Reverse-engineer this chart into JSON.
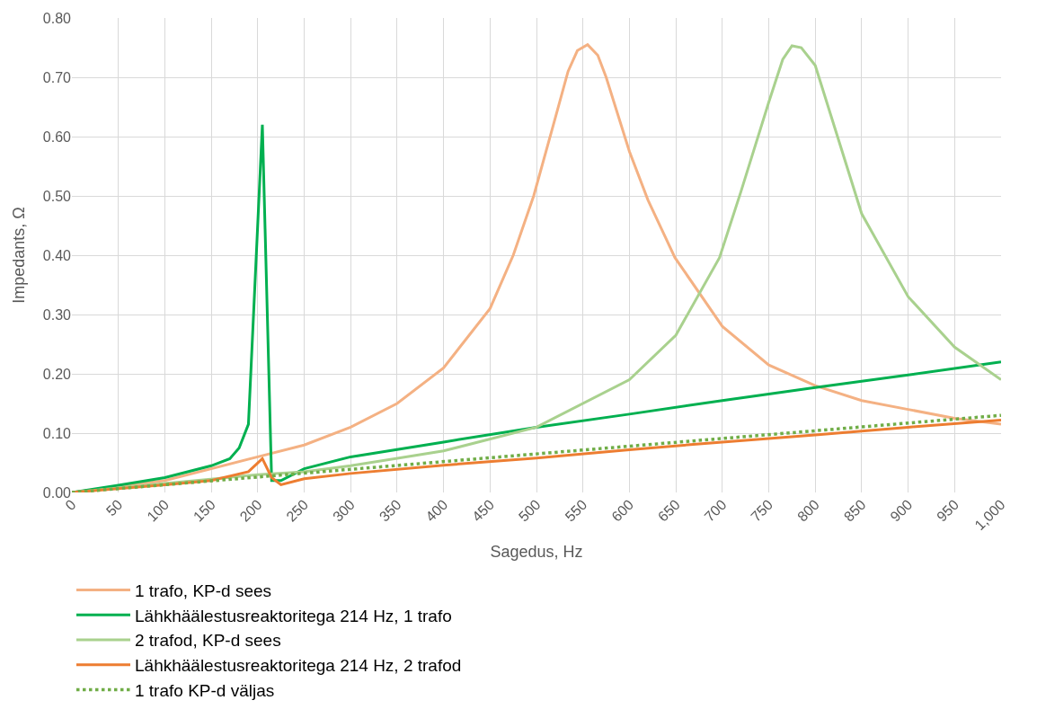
{
  "chart_data": {
    "type": "line",
    "xlabel": "Sagedus, Hz",
    "ylabel": "Impedants, Ω",
    "xlim": [
      0,
      1000
    ],
    "xticks": [
      0,
      50,
      100,
      150,
      200,
      250,
      300,
      350,
      400,
      450,
      500,
      550,
      600,
      650,
      700,
      750,
      800,
      850,
      900,
      950,
      {
        "value": 1000,
        "label": "1,000"
      }
    ],
    "ylim": [
      0,
      0.8
    ],
    "yticks": [
      {
        "value": 0,
        "label": "0.00"
      },
      {
        "value": 0.1,
        "label": "0.10"
      },
      {
        "value": 0.2,
        "label": "0.20"
      },
      {
        "value": 0.3,
        "label": "0.30"
      },
      {
        "value": 0.4,
        "label": "0.40"
      },
      {
        "value": 0.5,
        "label": "0.50"
      },
      {
        "value": 0.6,
        "label": "0.60"
      },
      {
        "value": 0.7,
        "label": "0.70"
      },
      {
        "value": 0.8,
        "label": "0.80"
      }
    ],
    "grid": true,
    "legend": "bottom",
    "marker": "none",
    "series": [
      {
        "name": "1 trafo, KP-d sees",
        "color": "#f4b183",
        "x": [
          0,
          100,
          200,
          250,
          300,
          350,
          400,
          450,
          475,
          497,
          520,
          534,
          544,
          555,
          566,
          575,
          600,
          620,
          649,
          700,
          750,
          800,
          850,
          900,
          950,
          1000
        ],
        "values": [
          0,
          0.02,
          0.06,
          0.08,
          0.11,
          0.15,
          0.21,
          0.31,
          0.4,
          0.5,
          0.63,
          0.71,
          0.745,
          0.755,
          0.737,
          0.7,
          0.575,
          0.493,
          0.396,
          0.28,
          0.215,
          0.18,
          0.155,
          0.14,
          0.125,
          0.115
        ]
      },
      {
        "name": "Lähkhäälestusreaktoritega 214 Hz, 1 trafo",
        "color": "#00b050",
        "x": [
          0,
          50,
          100,
          150,
          170,
          180,
          190,
          205,
          215,
          225,
          250,
          300,
          400,
          500,
          600,
          700,
          800,
          900,
          1000
        ],
        "values": [
          0,
          0.012,
          0.025,
          0.045,
          0.057,
          0.075,
          0.115,
          0.62,
          0.02,
          0.02,
          0.04,
          0.06,
          0.085,
          0.11,
          0.132,
          0.155,
          0.177,
          0.198,
          0.22
        ]
      },
      {
        "name": "2 trafod, KP-d sees",
        "color": "#a9d18e",
        "x": [
          0,
          100,
          200,
          250,
          300,
          400,
          500,
          600,
          650,
          697,
          720,
          750,
          765,
          775,
          785,
          800,
          850,
          900,
          950,
          1000
        ],
        "values": [
          0,
          0.015,
          0.03,
          0.035,
          0.045,
          0.07,
          0.11,
          0.19,
          0.265,
          0.396,
          0.507,
          0.658,
          0.73,
          0.753,
          0.75,
          0.72,
          0.47,
          0.33,
          0.245,
          0.19
        ]
      },
      {
        "name": "Lähkhäälestusreaktoritega 214 Hz, 2 trafod",
        "color": "#ed7d31",
        "x": [
          0,
          100,
          150,
          190,
          205,
          215,
          225,
          250,
          300,
          400,
          500,
          600,
          700,
          800,
          900,
          1000
        ],
        "values": [
          0,
          0.013,
          0.02,
          0.035,
          0.057,
          0.025,
          0.013,
          0.023,
          0.032,
          0.046,
          0.058,
          0.072,
          0.085,
          0.097,
          0.11,
          0.122
        ]
      },
      {
        "name": "1 trafo KP-d väljas",
        "color": "#70ad47",
        "line_style": "dotted",
        "x": [
          0,
          1000
        ],
        "values": [
          0,
          0.13
        ]
      }
    ]
  }
}
